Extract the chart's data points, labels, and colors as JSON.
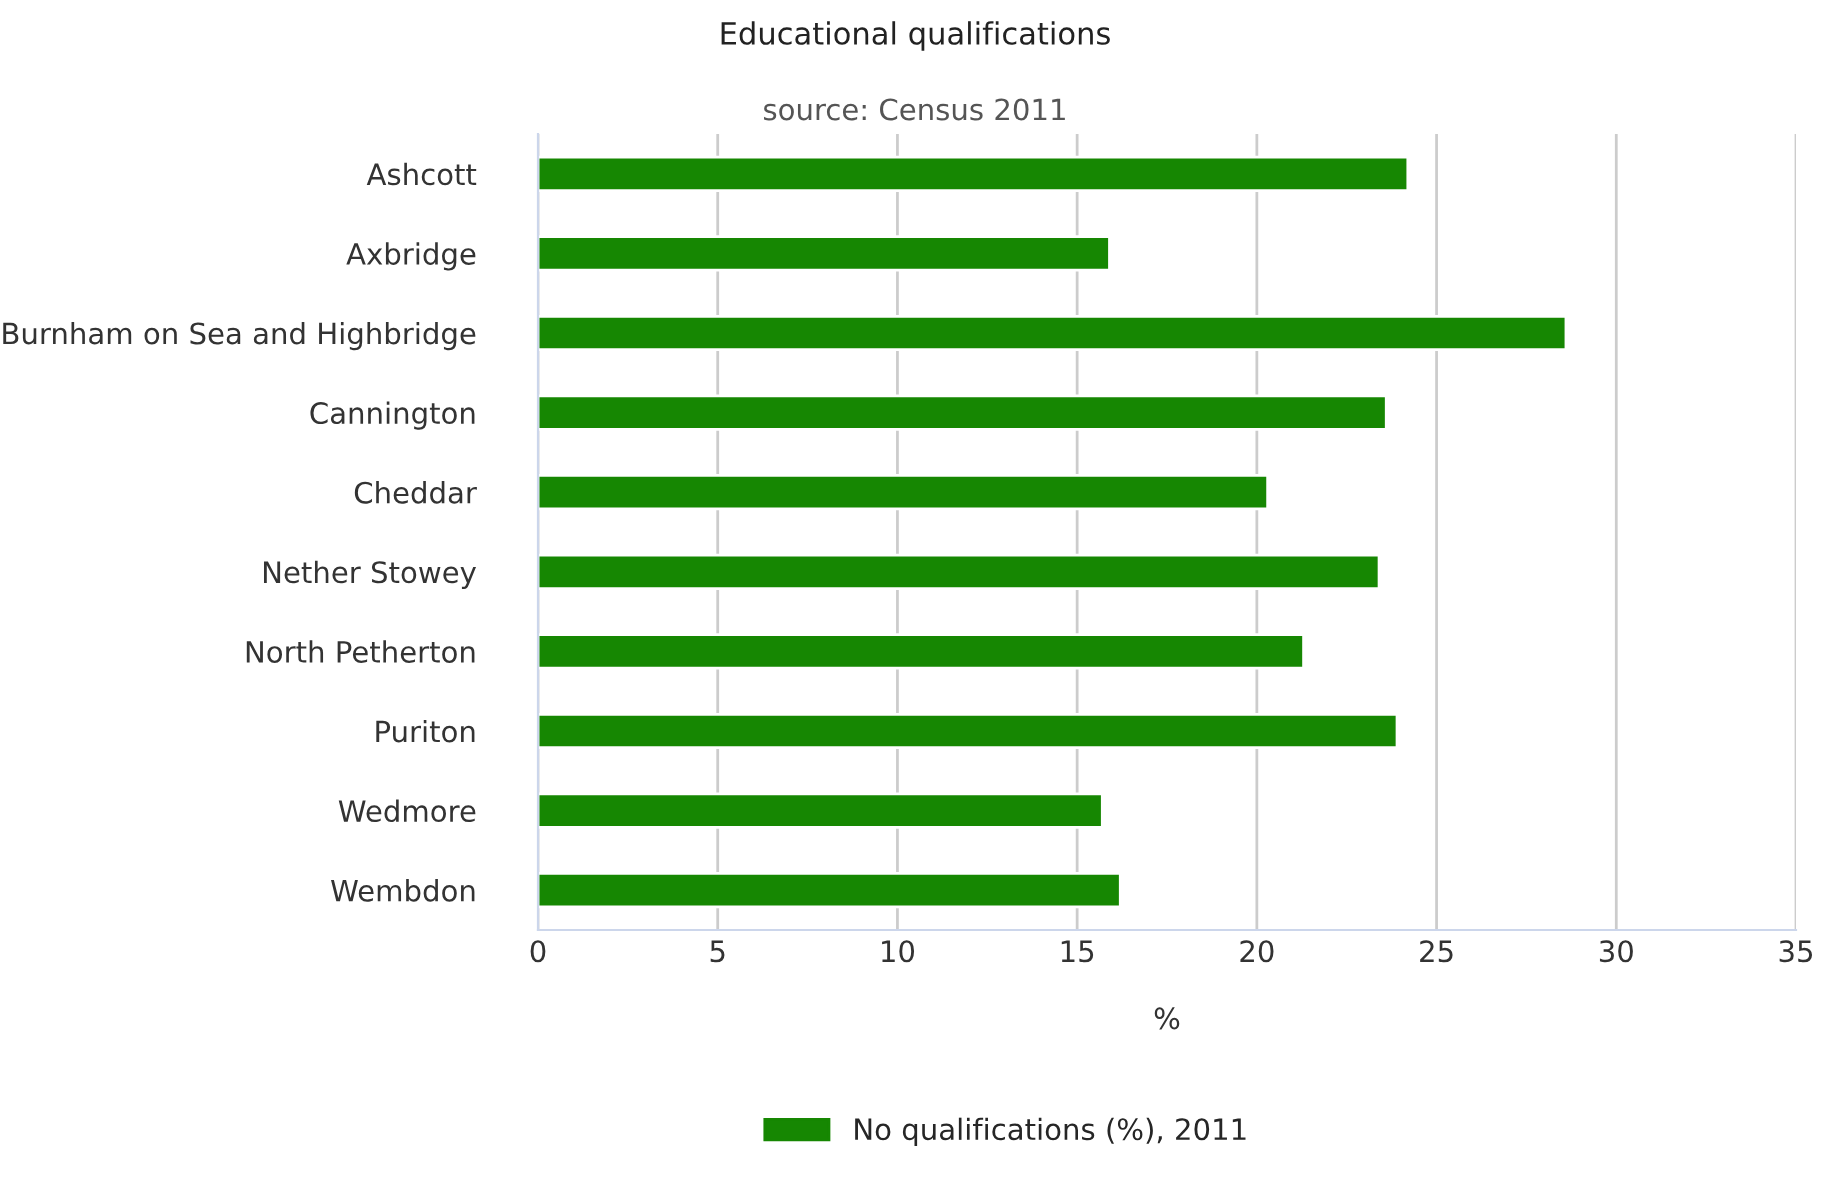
{
  "chart_data": {
    "type": "bar",
    "orientation": "horizontal",
    "title": "Educational qualifications",
    "subtitle": "source: Census 2011",
    "xlabel": "%",
    "categories": [
      "Ashcott",
      "Axbridge",
      "Burnham on Sea and Highbridge",
      "Cannington",
      "Cheddar",
      "Nether Stowey",
      "North Petherton",
      "Puriton",
      "Wedmore",
      "Wembdon"
    ],
    "series": [
      {
        "name": "No qualifications (%), 2011",
        "color": "#168702",
        "values": [
          24.2,
          15.9,
          28.6,
          23.6,
          20.3,
          23.4,
          21.3,
          23.9,
          15.7,
          16.2
        ]
      }
    ],
    "xlim": [
      0,
      35
    ],
    "xticks": [
      0,
      5,
      10,
      15,
      20,
      25,
      30,
      35
    ],
    "grid": "x",
    "legend": "bottom"
  }
}
